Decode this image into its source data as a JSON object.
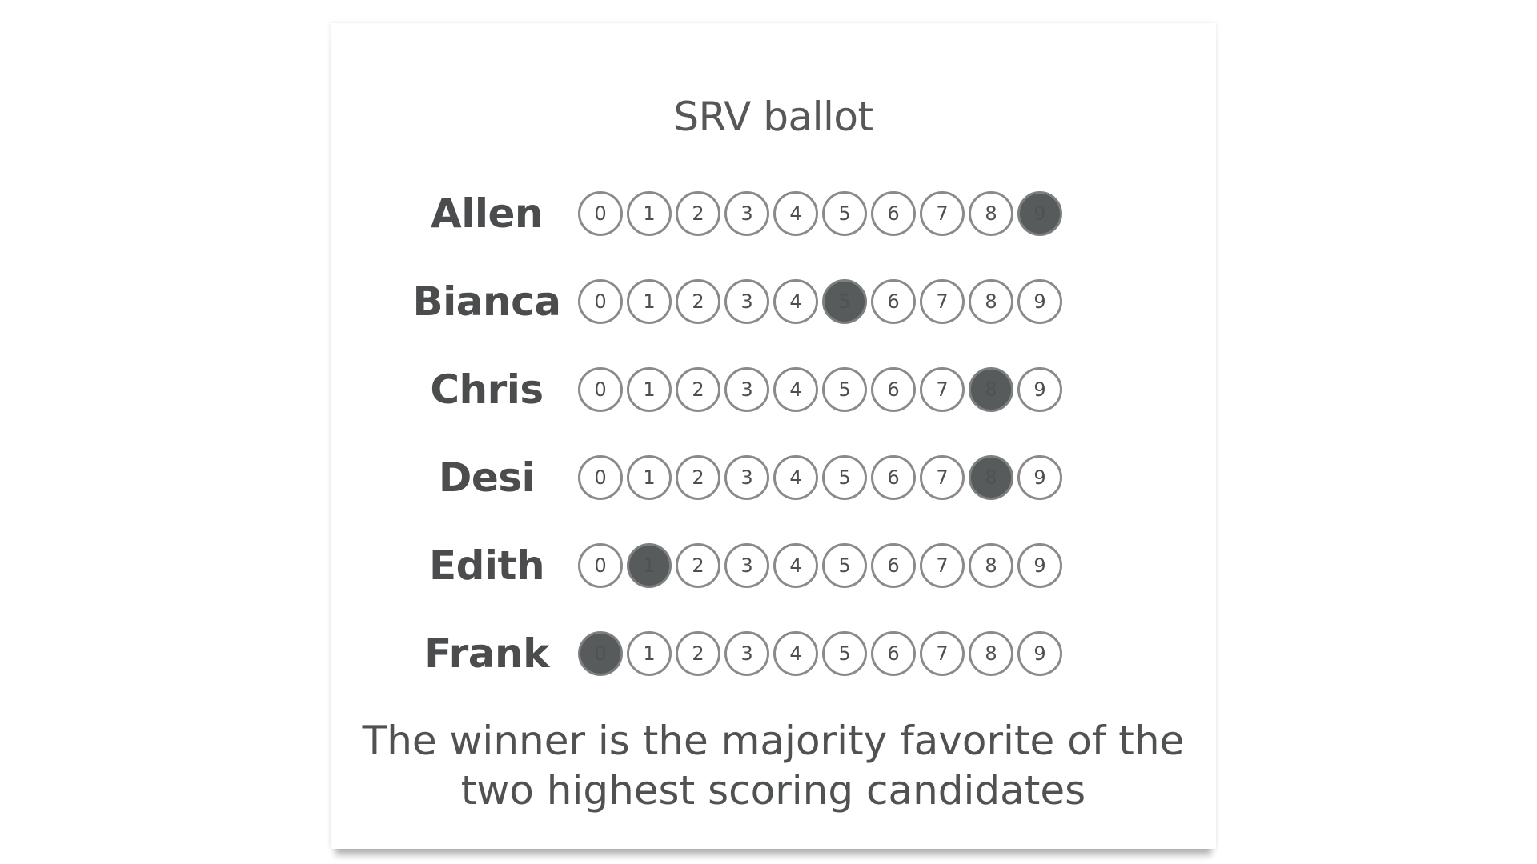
{
  "title": "SRV ballot",
  "scale": [
    "0",
    "1",
    "2",
    "3",
    "4",
    "5",
    "6",
    "7",
    "8",
    "9"
  ],
  "candidates": [
    {
      "name": "Allen",
      "selected": 9
    },
    {
      "name": "Bianca",
      "selected": 5
    },
    {
      "name": "Chris",
      "selected": 8
    },
    {
      "name": "Desi",
      "selected": 8
    },
    {
      "name": "Edith",
      "selected": 1
    },
    {
      "name": "Frank",
      "selected": 0
    }
  ],
  "footer": {
    "line1": "The winner is the majority favorite of the",
    "line2": "two highest scoring candidates"
  },
  "colors": {
    "filled": "#585b5c",
    "outline": "#8a8a8a",
    "text": "#4a4c4e"
  }
}
